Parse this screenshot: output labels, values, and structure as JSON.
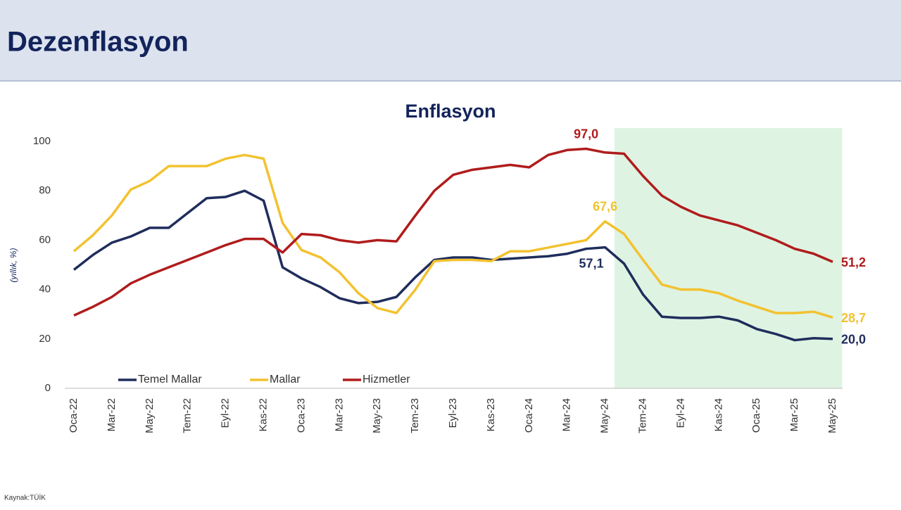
{
  "header": {
    "title": "Dezenflasyon"
  },
  "chart_data": {
    "type": "line",
    "title": "Enflasyon",
    "y_label": "(yıllık, %)",
    "categories": [
      "Oca-22",
      null,
      "Mar-22",
      null,
      "May-22",
      null,
      "Tem-22",
      null,
      "Eyl-22",
      null,
      "Kas-22",
      null,
      "Oca-23",
      null,
      "Mar-23",
      null,
      "May-23",
      null,
      "Tem-23",
      null,
      "Eyl-23",
      null,
      "Kas-23",
      null,
      "Oca-24",
      null,
      "Mar-24",
      null,
      "May-24",
      null,
      "Tem-24",
      null,
      "Eyl-24",
      null,
      "Kas-24",
      null,
      "Oca-25",
      null,
      "Mar-25",
      null,
      "May-25"
    ],
    "series": [
      {
        "name": "Temel Mallar",
        "color": "#1f2d5c",
        "values": [
          48,
          54,
          59,
          61.5,
          65,
          65,
          71,
          77,
          77.5,
          80,
          76,
          49,
          44.5,
          41,
          36.5,
          34.5,
          35,
          37,
          45,
          52,
          53,
          53,
          52,
          52.5,
          53,
          53.5,
          54.5,
          56.5,
          57.1,
          50.5,
          38,
          29,
          28.5,
          28.5,
          29,
          27.5,
          24,
          22,
          19.5,
          20.3,
          20.0
        ],
        "value_labels": [
          null,
          null,
          null,
          null,
          null,
          null,
          null,
          null,
          null,
          null,
          null,
          null,
          null,
          null,
          null,
          null,
          null,
          null,
          null,
          null,
          null,
          null,
          null,
          null,
          null,
          null,
          null,
          null,
          "57,1",
          null,
          null,
          null,
          null,
          null,
          null,
          null,
          null,
          null,
          null,
          null,
          "20,0"
        ]
      },
      {
        "name": "Mallar",
        "color": "#f2c230",
        "values": [
          55.5,
          62,
          70,
          80.5,
          84,
          90,
          90,
          90,
          93,
          94.5,
          93,
          67,
          56,
          53,
          47,
          38.5,
          32.5,
          30.5,
          40,
          51.5,
          52,
          52,
          51.5,
          55.5,
          55.5,
          57,
          58.5,
          60,
          67.6,
          62.5,
          52,
          42,
          40,
          40,
          38.5,
          35.5,
          33,
          30.5,
          30.5,
          31,
          28.7
        ],
        "value_labels": [
          null,
          null,
          null,
          null,
          null,
          null,
          null,
          null,
          null,
          null,
          null,
          null,
          null,
          null,
          null,
          null,
          null,
          null,
          null,
          null,
          null,
          null,
          null,
          null,
          null,
          null,
          null,
          null,
          "67,6",
          null,
          null,
          null,
          null,
          null,
          null,
          null,
          null,
          null,
          null,
          null,
          "28,7"
        ]
      },
      {
        "name": "Hizmetler",
        "color": "#b01c1c",
        "values": [
          29.5,
          33,
          37,
          42.5,
          46,
          49,
          52,
          55,
          58,
          60.5,
          60.5,
          55,
          62.5,
          62,
          60,
          59,
          60,
          59.5,
          70,
          80,
          86.5,
          88.5,
          89.5,
          90.5,
          89.5,
          94.5,
          96.5,
          97.0,
          95.5,
          95,
          86,
          78,
          73.5,
          70,
          68,
          66,
          63,
          60,
          56.5,
          54.5,
          51.2
        ],
        "value_labels": [
          null,
          null,
          null,
          null,
          null,
          null,
          null,
          null,
          null,
          null,
          null,
          null,
          null,
          null,
          null,
          null,
          null,
          null,
          null,
          null,
          null,
          null,
          null,
          null,
          null,
          null,
          null,
          "97,0",
          null,
          null,
          null,
          null,
          null,
          null,
          null,
          null,
          null,
          null,
          null,
          null,
          "51,2"
        ]
      }
    ],
    "ylim": [
      0,
      100
    ],
    "yticks": [
      0,
      20,
      40,
      60,
      80,
      100
    ],
    "grid": false,
    "shaded_from": "May-24",
    "shade_color": "#dff3e3"
  },
  "source": "Kaynak:TÜİK"
}
